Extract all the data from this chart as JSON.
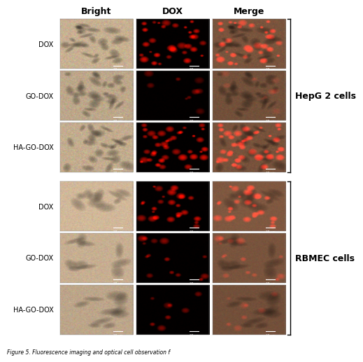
{
  "title": "Figure 5",
  "col_headers": [
    "Bright",
    "DOX",
    "Merge"
  ],
  "row_labels_group1": [
    "DOX",
    "GO-DOX",
    "HA-GO-DOX"
  ],
  "row_labels_group2": [
    "DOX",
    "GO-DOX",
    "HA-GO-DOX"
  ],
  "group_labels": [
    "HepG 2 cells",
    "RBMEC cells"
  ],
  "scale_bar_text": "20 μm",
  "background_color": "#ffffff",
  "header_fontsize": 9,
  "row_label_fontsize": 7,
  "group_label_fontsize": 9,
  "caption": "Figure 5. Fluorescence imaging and optical cell observation f",
  "hepg2_dox_intensity": 0.9,
  "hepg2_godox_intensity": 0.5,
  "hepg2_hagodox_intensity": 0.95,
  "rbmec_dox_intensity": 0.85,
  "rbmec_godox_intensity": 0.65,
  "rbmec_hagodox_intensity": 0.55
}
